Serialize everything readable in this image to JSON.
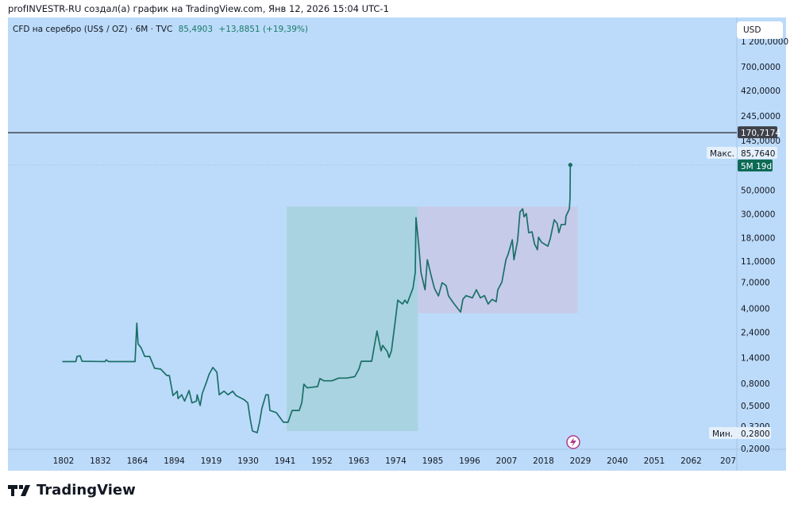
{
  "credit": "profINVESTR-RU создал(а) график на TradingView.com, Янв 12, 2026 15:04 UTC-1",
  "legend": {
    "symbol": "CFD на серебро (US$ / OZ) · 6M · TVC",
    "price": "85,4903",
    "change": "+13,8851 (+19,39%)"
  },
  "currency_button": "USD",
  "logo_text": "TradingView",
  "colors": {
    "line": "#1b6f68",
    "teal_box": "#a9d3e0",
    "purple_box": "#c6cbea",
    "bg": "#bcdbfa"
  },
  "chart_data": {
    "type": "line",
    "title": "CFD на серебро (US$ / OZ) · 6M · TVC",
    "yscale": "log",
    "ylim": [
      0.2,
      1200
    ],
    "y_ticks": [
      "1 200,0000",
      "700,0000",
      "420,0000",
      "245,0000",
      "145,0000",
      "50,0000",
      "30,0000",
      "18,0000",
      "11,0000",
      "7,0000",
      "4,0000",
      "2,4000",
      "1,4000",
      "0,8000",
      "0,5000",
      "0,3200",
      "0,2000"
    ],
    "y_tick_values": [
      1200,
      700,
      420,
      245,
      145,
      50,
      30,
      18,
      11,
      7,
      4,
      2.4,
      1.4,
      0.8,
      0.5,
      0.32,
      0.2
    ],
    "x_ticks": [
      "1802",
      "1832",
      "1864",
      "1894",
      "1919",
      "1930",
      "1941",
      "1952",
      "1963",
      "1974",
      "1985",
      "1996",
      "2007",
      "2018",
      "2029",
      "2040",
      "2051",
      "2062",
      "207"
    ],
    "horizontal_line": {
      "value": 170.7174,
      "label": "170,7174"
    },
    "max_marker": {
      "label": "Макс.",
      "value": "85,7640",
      "countdown": "5M 19d"
    },
    "min_marker": {
      "label": "Мин.",
      "value": "0,2800"
    },
    "boxes": [
      {
        "name": "teal",
        "x": [
          1941.5,
          1980.6
        ],
        "y": [
          0.29,
          35.2
        ]
      },
      {
        "name": "purple",
        "x": [
          1980.6,
          2028.2
        ],
        "y": [
          3.6,
          35.2
        ]
      }
    ],
    "series": [
      {
        "name": "Silver",
        "points": [
          [
            1801,
            1.28
          ],
          [
            1812,
            1.28
          ],
          [
            1813,
            1.43
          ],
          [
            1815.5,
            1.45
          ],
          [
            1817,
            1.29
          ],
          [
            1836,
            1.28
          ],
          [
            1837,
            1.33
          ],
          [
            1839,
            1.28
          ],
          [
            1862,
            1.28
          ],
          [
            1863.5,
            2.91
          ],
          [
            1864.6,
            1.87
          ],
          [
            1867,
            1.72
          ],
          [
            1870,
            1.43
          ],
          [
            1874,
            1.43
          ],
          [
            1878,
            1.11
          ],
          [
            1883,
            1.09
          ],
          [
            1888,
            0.95
          ],
          [
            1890,
            0.95
          ],
          [
            1893,
            0.62
          ],
          [
            1896,
            0.68
          ],
          [
            1896.5,
            0.58
          ],
          [
            1899,
            0.63
          ],
          [
            1901,
            0.55
          ],
          [
            1904,
            0.69
          ],
          [
            1906,
            0.53
          ],
          [
            1909,
            0.55
          ],
          [
            1909.5,
            0.63
          ],
          [
            1911.5,
            0.5
          ],
          [
            1913,
            0.65
          ],
          [
            1916,
            0.84
          ],
          [
            1917.5,
            0.97
          ],
          [
            1919.5,
            1.13
          ],
          [
            1920.7,
            1.02
          ],
          [
            1921.4,
            0.63
          ],
          [
            1922.8,
            0.68
          ],
          [
            1924,
            0.63
          ],
          [
            1925.4,
            0.68
          ],
          [
            1926.4,
            0.62
          ],
          [
            1928.7,
            0.57
          ],
          [
            1929.9,
            0.53
          ],
          [
            1930.6,
            0.38
          ],
          [
            1931.3,
            0.29
          ],
          [
            1932.7,
            0.28
          ],
          [
            1933.4,
            0.35
          ],
          [
            1934.1,
            0.47
          ],
          [
            1935.3,
            0.63
          ],
          [
            1936,
            0.63
          ],
          [
            1936.5,
            0.45
          ],
          [
            1938.4,
            0.43
          ],
          [
            1940.5,
            0.35
          ],
          [
            1941.9,
            0.35
          ],
          [
            1943.1,
            0.45
          ],
          [
            1945.2,
            0.45
          ],
          [
            1946,
            0.53
          ],
          [
            1946.6,
            0.79
          ],
          [
            1947.6,
            0.73
          ],
          [
            1949,
            0.74
          ],
          [
            1950.7,
            0.75
          ],
          [
            1951.4,
            0.89
          ],
          [
            1952.6,
            0.85
          ],
          [
            1955,
            0.85
          ],
          [
            1957,
            0.9
          ],
          [
            1959.4,
            0.9
          ],
          [
            1961.8,
            0.93
          ],
          [
            1963,
            1.09
          ],
          [
            1963.7,
            1.29
          ],
          [
            1966.8,
            1.29
          ],
          [
            1968.4,
            2.46
          ],
          [
            1969.6,
            1.61
          ],
          [
            1970.1,
            1.81
          ],
          [
            1971.5,
            1.58
          ],
          [
            1972,
            1.4
          ],
          [
            1972.7,
            1.61
          ],
          [
            1973.9,
            3.17
          ],
          [
            1974.6,
            4.76
          ],
          [
            1976,
            4.38
          ],
          [
            1976.7,
            4.76
          ],
          [
            1977.4,
            4.45
          ],
          [
            1979.1,
            6.14
          ],
          [
            1979.8,
            8.6
          ],
          [
            1980,
            27.8
          ],
          [
            1980.8,
            15.9
          ],
          [
            1981.5,
            8.6
          ],
          [
            1982.7,
            5.95
          ],
          [
            1983.4,
            11.3
          ],
          [
            1984.5,
            8.1
          ],
          [
            1985.5,
            6.14
          ],
          [
            1986.7,
            5.2
          ],
          [
            1987.8,
            6.9
          ],
          [
            1989,
            6.5
          ],
          [
            1989.7,
            5.2
          ],
          [
            1991.4,
            4.38
          ],
          [
            1993.3,
            3.69
          ],
          [
            1994,
            4.84
          ],
          [
            1994.9,
            5.25
          ],
          [
            1996.8,
            5.0
          ],
          [
            1998,
            5.95
          ],
          [
            1999.2,
            5.0
          ],
          [
            2000.4,
            5.25
          ],
          [
            2001.5,
            4.38
          ],
          [
            2002.7,
            4.84
          ],
          [
            2003.9,
            4.6
          ],
          [
            2004.4,
            5.95
          ],
          [
            2005.6,
            7.0
          ],
          [
            2006.8,
            11.3
          ],
          [
            2007.5,
            12.8
          ],
          [
            2008.7,
            17.3
          ],
          [
            2009.2,
            11.3
          ],
          [
            2010.3,
            17.0
          ],
          [
            2011,
            31.3
          ],
          [
            2011.8,
            33.5
          ],
          [
            2012.2,
            28.3
          ],
          [
            2012.9,
            30.3
          ],
          [
            2013.6,
            20.1
          ],
          [
            2014.6,
            20.5
          ],
          [
            2015.3,
            15.9
          ],
          [
            2016.2,
            14.0
          ],
          [
            2016.5,
            18.3
          ],
          [
            2017.4,
            16.4
          ],
          [
            2019.3,
            15.1
          ],
          [
            2020,
            17.7
          ],
          [
            2021.2,
            26.5
          ],
          [
            2022.1,
            24.5
          ],
          [
            2022.6,
            20.1
          ],
          [
            2023.3,
            24.0
          ],
          [
            2024.5,
            24.0
          ],
          [
            2024.7,
            28.6
          ],
          [
            2025.7,
            33.5
          ],
          [
            2025.9,
            41.8
          ],
          [
            2026,
            85.76
          ]
        ]
      }
    ]
  }
}
